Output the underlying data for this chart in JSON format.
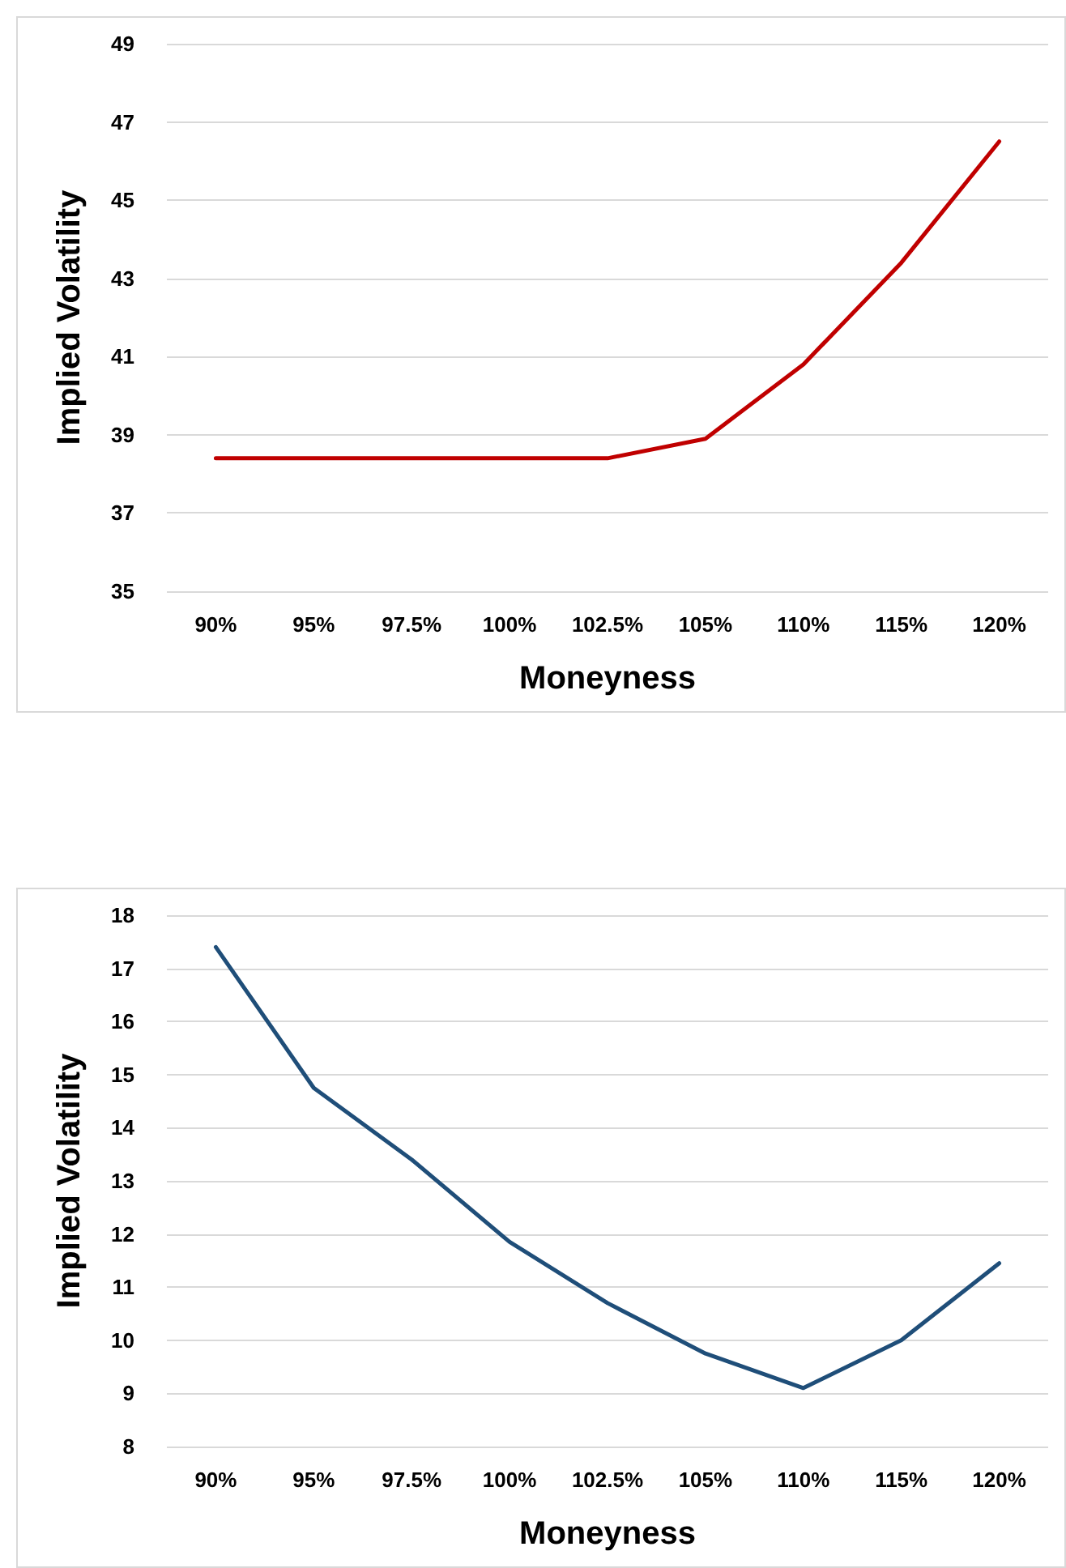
{
  "chart_data": [
    {
      "type": "line",
      "xlabel": "Moneyness",
      "ylabel": "Implied Volatility",
      "categories": [
        "90%",
        "95%",
        "97.5%",
        "100%",
        "102.5%",
        "105%",
        "110%",
        "115%",
        "120%"
      ],
      "series": [
        {
          "color": "#c00000",
          "values": [
            38.4,
            38.4,
            38.4,
            38.4,
            38.4,
            38.9,
            40.8,
            43.4,
            46.5
          ]
        }
      ],
      "ylim": [
        35,
        49
      ],
      "yticks": [
        35,
        37,
        39,
        41,
        43,
        45,
        47,
        49
      ],
      "grid": "y",
      "marker": "none"
    },
    {
      "type": "line",
      "xlabel": "Moneyness",
      "ylabel": "Implied Volatility",
      "categories": [
        "90%",
        "95%",
        "97.5%",
        "100%",
        "102.5%",
        "105%",
        "110%",
        "115%",
        "120%"
      ],
      "series": [
        {
          "color": "#1f4e79",
          "values": [
            17.4,
            14.75,
            13.4,
            11.85,
            10.7,
            9.75,
            9.1,
            10,
            11.45
          ]
        }
      ],
      "ylim": [
        8,
        18
      ],
      "yticks": [
        8,
        9,
        10,
        11,
        12,
        13,
        14,
        15,
        16,
        17,
        18
      ],
      "grid": "y",
      "marker": "none"
    }
  ]
}
